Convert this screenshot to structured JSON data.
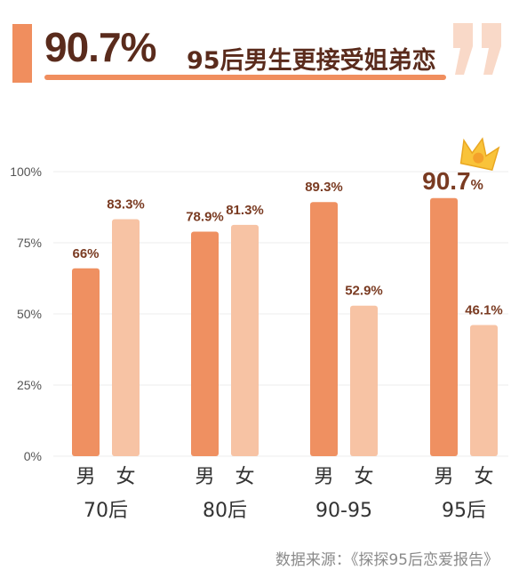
{
  "headline": {
    "big_percent": "90.7%",
    "text": "95后男生更接受姐弟恋"
  },
  "colors": {
    "accent": "#f08e5e",
    "male": "#ef9061",
    "female": "#f7c3a4",
    "dark_text": "#5a2b1c",
    "label_text": "#7a3b22",
    "axis_text": "#555555",
    "source_text": "#8a8a8a",
    "grid": "#ececec",
    "crown": "#f9c33a"
  },
  "icons": {
    "crown": "crown-icon",
    "quote": "quote-mark-icon"
  },
  "chart_data": {
    "type": "bar",
    "categories": [
      "70后",
      "80后",
      "90-95",
      "95后"
    ],
    "bar_labels": [
      "男",
      "女"
    ],
    "series": [
      {
        "name": "男",
        "values": [
          66,
          78.9,
          89.3,
          90.7
        ],
        "labels": [
          "66%",
          "78.9%",
          "89.3%",
          "90.7%"
        ]
      },
      {
        "name": "女",
        "values": [
          83.3,
          81.3,
          52.9,
          46.1
        ],
        "labels": [
          "83.3%",
          "81.3%",
          "52.9%",
          "46.1%"
        ]
      }
    ],
    "yticks": [
      "0%",
      "25%",
      "50%",
      "75%",
      "100%"
    ],
    "ylim": [
      0,
      100
    ],
    "grid": true
  },
  "source": "数据来源：《探探95后恋爱报告》"
}
